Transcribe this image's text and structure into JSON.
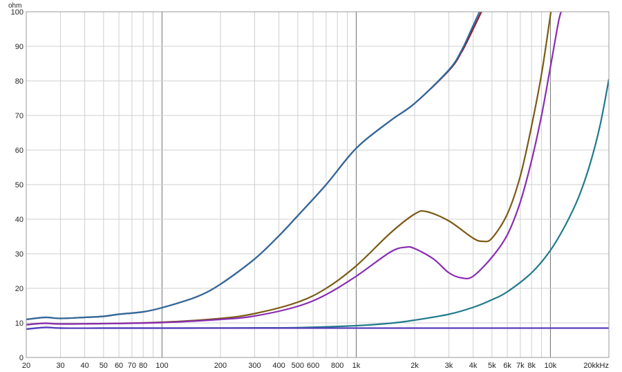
{
  "chart_data": {
    "type": "line",
    "title": "",
    "y_unit_label": "ohm",
    "x_unit_label": "kHz",
    "x_scale": "log",
    "xlim": [
      20,
      20000
    ],
    "ylim": [
      0,
      100
    ],
    "grid": true,
    "legend": "none",
    "y_ticks": [
      {
        "value": 0,
        "label": "0"
      },
      {
        "value": 10,
        "label": "10"
      },
      {
        "value": 20,
        "label": "20"
      },
      {
        "value": 30,
        "label": "30"
      },
      {
        "value": 40,
        "label": "40"
      },
      {
        "value": 50,
        "label": "50"
      },
      {
        "value": 60,
        "label": "60"
      },
      {
        "value": 70,
        "label": "70"
      },
      {
        "value": 80,
        "label": "80"
      },
      {
        "value": 90,
        "label": "90"
      },
      {
        "value": 100,
        "label": "100"
      }
    ],
    "x_ticks": [
      {
        "value": 20,
        "label": "20"
      },
      {
        "value": 30,
        "label": "30"
      },
      {
        "value": 40,
        "label": "40"
      },
      {
        "value": 50,
        "label": "50"
      },
      {
        "value": 60,
        "label": "60"
      },
      {
        "value": 70,
        "label": "70"
      },
      {
        "value": 80,
        "label": "80"
      },
      {
        "value": 100,
        "label": "100"
      },
      {
        "value": 200,
        "label": "200"
      },
      {
        "value": 300,
        "label": "300"
      },
      {
        "value": 400,
        "label": "400"
      },
      {
        "value": 500,
        "label": "500"
      },
      {
        "value": 600,
        "label": "600"
      },
      {
        "value": 800,
        "label": "800"
      },
      {
        "value": 1000,
        "label": "1k"
      },
      {
        "value": 2000,
        "label": "2k"
      },
      {
        "value": 3000,
        "label": "3k"
      },
      {
        "value": 4000,
        "label": "4k"
      },
      {
        "value": 5000,
        "label": "5k"
      },
      {
        "value": 6000,
        "label": "6k"
      },
      {
        "value": 7000,
        "label": "7k"
      },
      {
        "value": 8000,
        "label": "8k"
      },
      {
        "value": 10000,
        "label": "10k"
      },
      {
        "value": 20000,
        "label": "20k"
      }
    ],
    "series": [
      {
        "color": "#8b1a2e",
        "points": [
          [
            20,
            11
          ],
          [
            25,
            11.6
          ],
          [
            30,
            11.3
          ],
          [
            40,
            11.6
          ],
          [
            50,
            11.9
          ],
          [
            60,
            12.5
          ],
          [
            80,
            13.2
          ],
          [
            100,
            14.4
          ],
          [
            150,
            17.5
          ],
          [
            200,
            21.2
          ],
          [
            300,
            28.5
          ],
          [
            400,
            35.2
          ],
          [
            500,
            41
          ],
          [
            700,
            50
          ],
          [
            1000,
            60.5
          ],
          [
            1500,
            68.5
          ],
          [
            2000,
            73.5
          ],
          [
            3000,
            83
          ],
          [
            3500,
            88.5
          ],
          [
            4000,
            95
          ],
          [
            4500,
            101
          ]
        ]
      },
      {
        "color": "#2e6b9e",
        "points": [
          [
            20,
            11
          ],
          [
            25,
            11.6
          ],
          [
            30,
            11.3
          ],
          [
            40,
            11.6
          ],
          [
            50,
            11.9
          ],
          [
            60,
            12.5
          ],
          [
            80,
            13.2
          ],
          [
            100,
            14.4
          ],
          [
            150,
            17.5
          ],
          [
            200,
            21.2
          ],
          [
            300,
            28.5
          ],
          [
            400,
            35.2
          ],
          [
            500,
            41
          ],
          [
            700,
            50
          ],
          [
            1000,
            60.5
          ],
          [
            1500,
            68.5
          ],
          [
            2000,
            73.5
          ],
          [
            3000,
            83.2
          ],
          [
            3500,
            89
          ],
          [
            4000,
            96
          ],
          [
            4400,
            101
          ]
        ]
      },
      {
        "color": "#7a5a14",
        "points": [
          [
            20,
            9.5
          ],
          [
            25,
            9.9
          ],
          [
            30,
            9.7
          ],
          [
            50,
            9.8
          ],
          [
            100,
            10.2
          ],
          [
            200,
            11.3
          ],
          [
            300,
            12.7
          ],
          [
            500,
            16
          ],
          [
            700,
            20
          ],
          [
            1000,
            26.5
          ],
          [
            1500,
            36
          ],
          [
            2000,
            41.5
          ],
          [
            2300,
            42.2
          ],
          [
            3000,
            39.5
          ],
          [
            4000,
            34.5
          ],
          [
            4500,
            33.6
          ],
          [
            5000,
            34.5
          ],
          [
            6000,
            41.5
          ],
          [
            7000,
            52.5
          ],
          [
            8000,
            67
          ],
          [
            9000,
            82
          ],
          [
            10000,
            99
          ],
          [
            10100,
            101
          ]
        ]
      },
      {
        "color": "#8a2cb3",
        "points": [
          [
            20,
            9.5
          ],
          [
            25,
            9.9
          ],
          [
            30,
            9.7
          ],
          [
            50,
            9.8
          ],
          [
            100,
            10.1
          ],
          [
            200,
            11
          ],
          [
            300,
            12
          ],
          [
            500,
            14.8
          ],
          [
            700,
            18.2
          ],
          [
            1000,
            23.5
          ],
          [
            1500,
            30.5
          ],
          [
            1800,
            31.9
          ],
          [
            2000,
            31.5
          ],
          [
            2500,
            28.5
          ],
          [
            3000,
            24.5
          ],
          [
            3500,
            23
          ],
          [
            4000,
            23.5
          ],
          [
            5000,
            29
          ],
          [
            6000,
            35.5
          ],
          [
            7000,
            45
          ],
          [
            8000,
            57
          ],
          [
            9000,
            70
          ],
          [
            10000,
            84
          ],
          [
            11000,
            97
          ],
          [
            11500,
            101
          ]
        ]
      },
      {
        "color": "#1f7a8a",
        "points": [
          [
            20,
            8.2
          ],
          [
            25,
            8.7
          ],
          [
            30,
            8.5
          ],
          [
            50,
            8.5
          ],
          [
            100,
            8.5
          ],
          [
            200,
            8.55
          ],
          [
            500,
            8.65
          ],
          [
            1000,
            9.2
          ],
          [
            1500,
            9.9
          ],
          [
            2000,
            10.8
          ],
          [
            3000,
            12.5
          ],
          [
            4000,
            14.5
          ],
          [
            5000,
            16.7
          ],
          [
            6000,
            19
          ],
          [
            8000,
            24.5
          ],
          [
            10000,
            31
          ],
          [
            12000,
            38.5
          ],
          [
            14000,
            46.5
          ],
          [
            16000,
            56
          ],
          [
            18000,
            67
          ],
          [
            20000,
            80.5
          ]
        ]
      },
      {
        "color": "#5a3cc0",
        "points": [
          [
            20,
            8.2
          ],
          [
            25,
            8.7
          ],
          [
            30,
            8.5
          ],
          [
            50,
            8.5
          ],
          [
            100,
            8.5
          ],
          [
            1000,
            8.5
          ],
          [
            5000,
            8.5
          ],
          [
            20000,
            8.5
          ]
        ]
      }
    ]
  }
}
